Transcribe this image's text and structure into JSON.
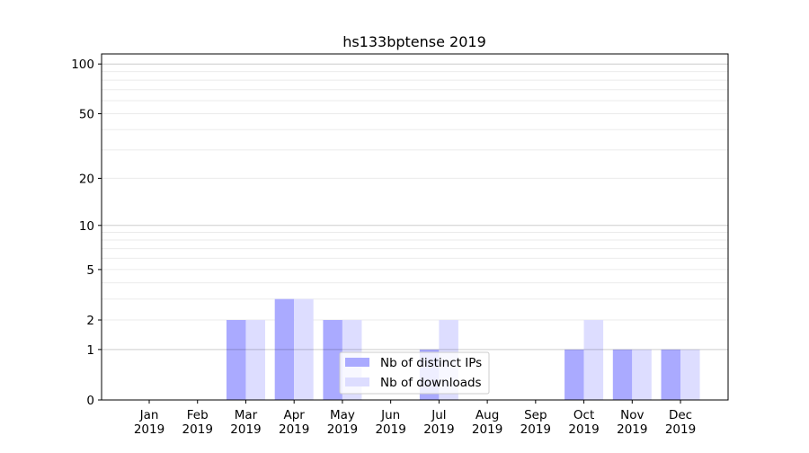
{
  "chart_data": {
    "type": "bar",
    "title": "hs133bptense 2019",
    "xlabel": "",
    "ylabel": "",
    "yscale": "log(1+y)",
    "ylim": [
      0,
      115
    ],
    "yticks": [
      0,
      1,
      2,
      5,
      10,
      20,
      50,
      100
    ],
    "grid": true,
    "legend_position": "lower center",
    "categories": [
      "Jan\n2019",
      "Feb\n2019",
      "Mar\n2019",
      "Apr\n2019",
      "May\n2019",
      "Jun\n2019",
      "Jul\n2019",
      "Aug\n2019",
      "Sep\n2019",
      "Oct\n2019",
      "Nov\n2019",
      "Dec\n2019"
    ],
    "series": [
      {
        "name": "Nb of distinct IPs",
        "color": "#aaaaff",
        "values": [
          0,
          0,
          2,
          3,
          2,
          0,
          1,
          0,
          0,
          1,
          1,
          1
        ]
      },
      {
        "name": "Nb of downloads",
        "color": "#ddddff",
        "values": [
          0,
          0,
          2,
          3,
          2,
          0,
          2,
          0,
          0,
          2,
          1,
          1
        ]
      }
    ]
  }
}
